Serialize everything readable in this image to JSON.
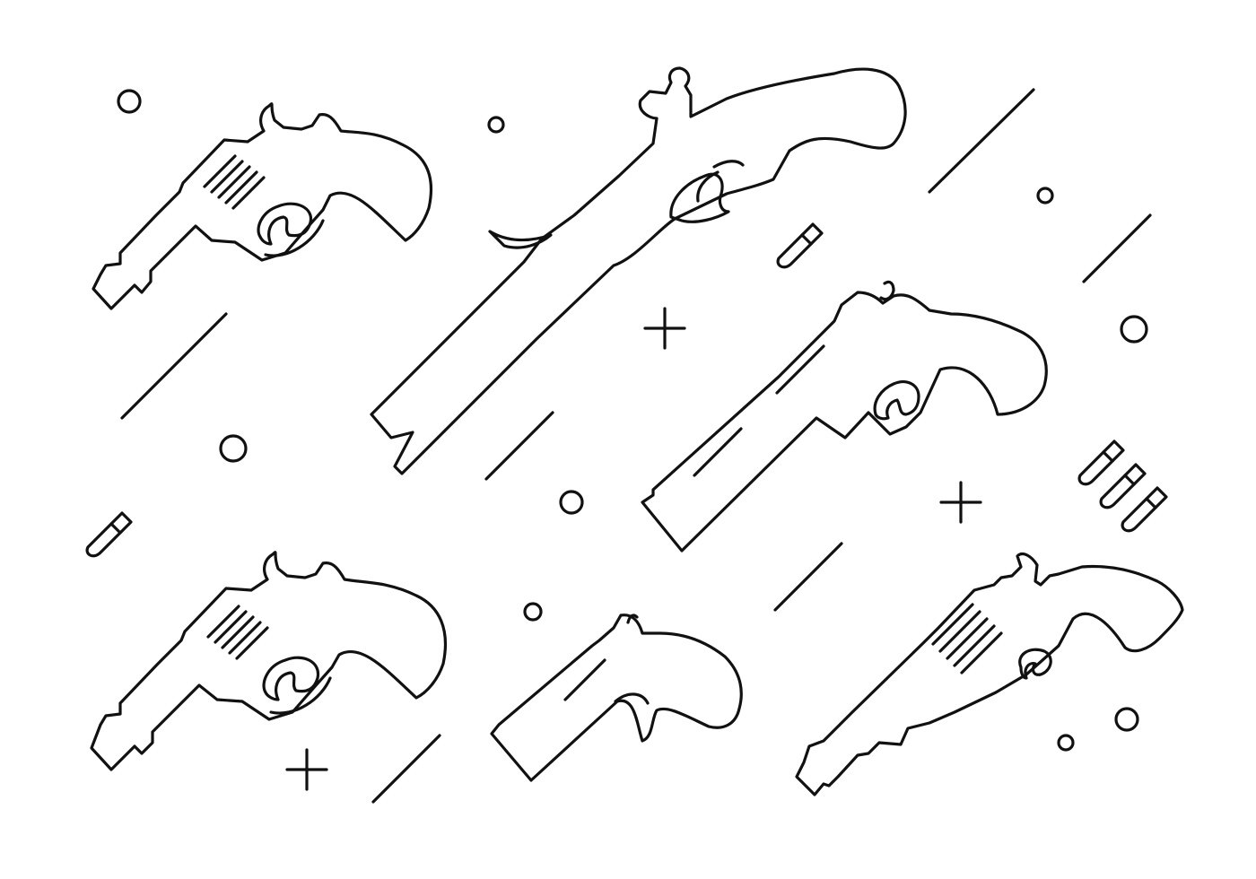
{
  "illustration": {
    "style": "monoline outline icons, seamless pattern",
    "stroke_color": "#111111",
    "background_color": "#ffffff",
    "icons": [
      "revolver-icon",
      "flintlock-pistol-icon",
      "long-barrel-revolver-icon",
      "derringer-icon",
      "bullet-icon",
      "bullet-trio-icon",
      "circle-icon",
      "plus-icon",
      "slash-line-icon"
    ]
  }
}
